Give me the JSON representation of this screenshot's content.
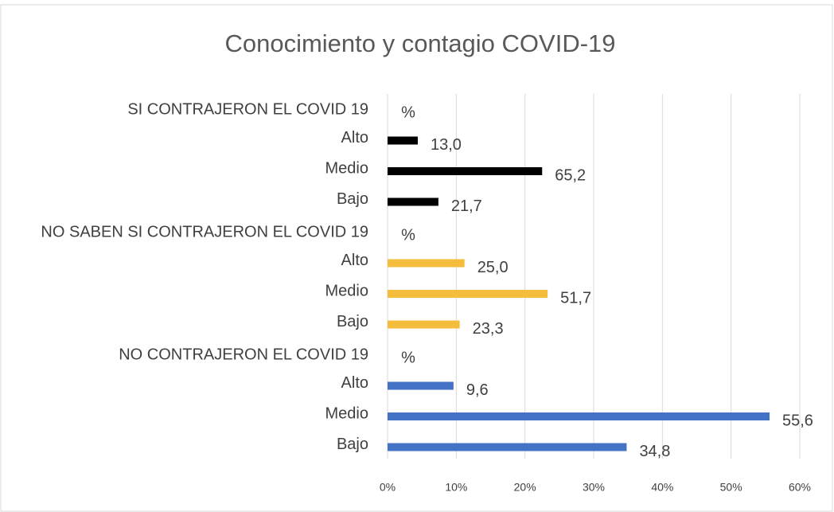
{
  "chart_data": {
    "type": "bar",
    "orientation": "horizontal",
    "title": "Conocimiento y contagio COVID-19",
    "xlim": [
      0,
      60
    ],
    "xticks": [
      {
        "value": 0,
        "label": "0%"
      },
      {
        "value": 10,
        "label": "10%"
      },
      {
        "value": 20,
        "label": "20%"
      },
      {
        "value": 30,
        "label": "30%"
      },
      {
        "value": 40,
        "label": "40%"
      },
      {
        "value": 50,
        "label": "50%"
      },
      {
        "value": 60,
        "label": "60%"
      }
    ],
    "grid": true,
    "series": [
      {
        "name": "SI CONTRAJERON EL COVID 19",
        "unit_label": "%",
        "color": "#000000",
        "categories": [
          "Alto",
          "Medio",
          "Bajo"
        ],
        "values": [
          4.4,
          22.5,
          7.4
        ],
        "annotations": [
          "13,0",
          "65,2",
          "21,7"
        ]
      },
      {
        "name": "NO SABEN SI CONTRAJERON EL COVID 19",
        "unit_label": "%",
        "color": "#f5bd3c",
        "categories": [
          "Alto",
          "Medio",
          "Bajo"
        ],
        "values": [
          11.2,
          23.3,
          10.5
        ],
        "annotations": [
          "25,0",
          "51,7",
          "23,3"
        ]
      },
      {
        "name": "NO CONTRAJERON EL COVID 19",
        "unit_label": "%",
        "color": "#4472c4",
        "categories": [
          "Alto",
          "Medio",
          "Bajo"
        ],
        "values": [
          9.6,
          55.6,
          34.8
        ],
        "annotations": [
          "9,6",
          "55,6",
          "34,8"
        ]
      }
    ]
  }
}
